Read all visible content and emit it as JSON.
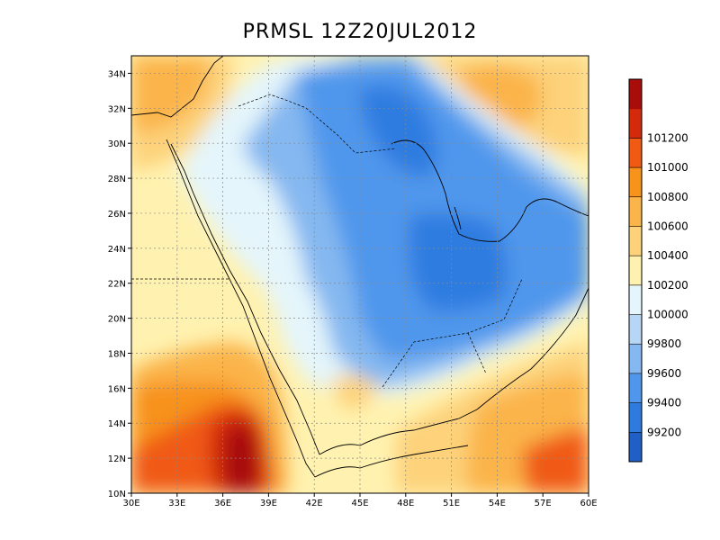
{
  "title": "PRMSL 12Z20JUL2012",
  "map": {
    "lon_range": [
      30,
      60
    ],
    "lat_range": [
      10,
      35
    ],
    "x_ticks": [
      "30E",
      "33E",
      "36E",
      "39E",
      "42E",
      "45E",
      "48E",
      "51E",
      "54E",
      "57E",
      "60E"
    ],
    "y_ticks": [
      "10N",
      "12N",
      "14N",
      "16N",
      "18N",
      "20N",
      "22N",
      "24N",
      "26N",
      "28N",
      "30N",
      "32N",
      "34N"
    ],
    "gridlines": true
  },
  "colorbar": {
    "labels": [
      "99200",
      "99400",
      "99600",
      "99800",
      "100000",
      "100200",
      "100400",
      "100600",
      "100800",
      "101000",
      "101200"
    ],
    "colors": [
      "#1f5fc6",
      "#2e7be0",
      "#4f97ec",
      "#85b8f0",
      "#b7d5f4",
      "#e4f5fb",
      "#fff2b0",
      "#fdd27a",
      "#fbb449",
      "#f7921a",
      "#f05a12",
      "#d42a0c",
      "#a80d0a"
    ]
  }
}
